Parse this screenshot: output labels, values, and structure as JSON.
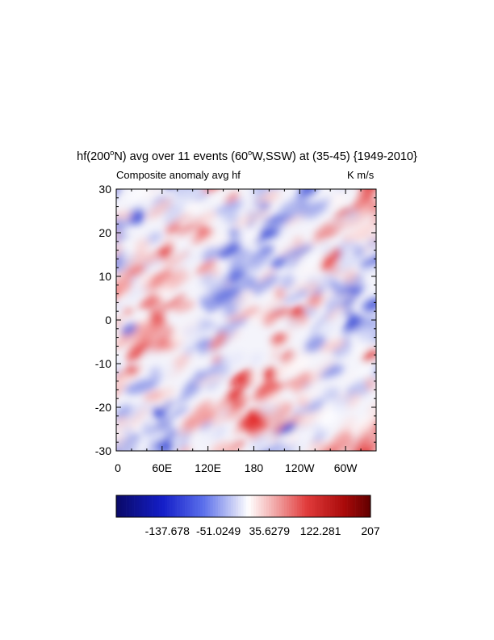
{
  "chart_data": {
    "type": "heatmap",
    "title_parts": [
      "hf(200",
      "o",
      "N) avg over 11 events (60",
      "o",
      "W,SSW) at (35-45) {1949-2010}"
    ],
    "left_label": "Composite anomaly avg hf",
    "right_label": "K m/s",
    "x_tick_labels": [
      "0",
      "60E",
      "120E",
      "180",
      "120W",
      "60W"
    ],
    "y_tick_labels": [
      "30",
      "20",
      "10",
      "0",
      "-10",
      "-20",
      "-30"
    ],
    "y_tick_values": [
      30,
      20,
      10,
      0,
      -10,
      -20,
      -30
    ],
    "y_range": [
      -30,
      30
    ],
    "x_range_degrees_east": [
      0,
      360
    ],
    "colorbar": {
      "min": -224.33,
      "max": 207,
      "labels": [
        "-137.678",
        "-51.0249",
        "35.6279",
        "122.281",
        "207"
      ],
      "label_values": [
        -137.678,
        -51.0249,
        35.6279,
        122.281,
        207
      ]
    },
    "colors": {
      "negative_extreme": "#0a0a6a",
      "negative": "#2233cc",
      "neutral": "#ffffff",
      "positive": "#dd2222",
      "positive_extreme": "#6a0000"
    },
    "grid": false
  }
}
